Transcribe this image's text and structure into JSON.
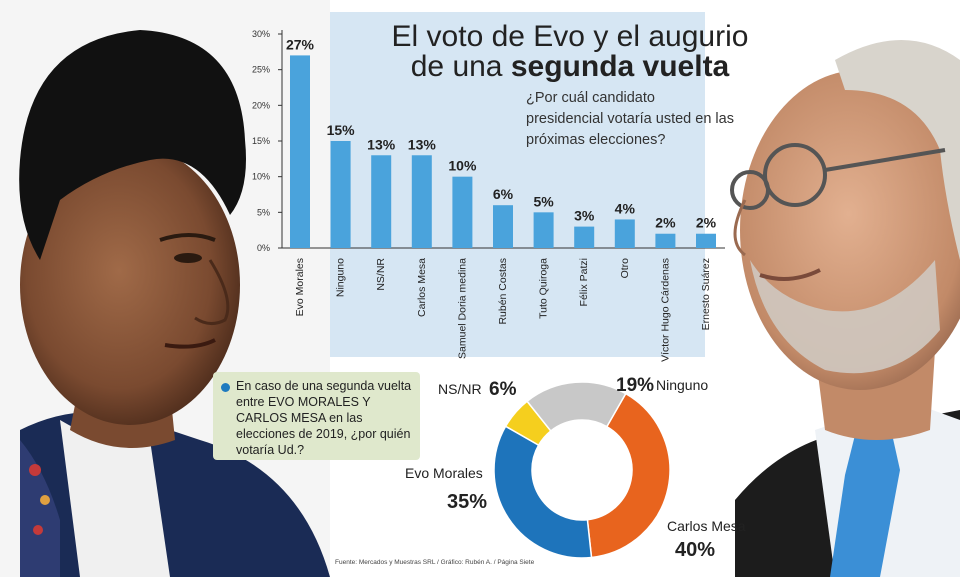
{
  "header": {
    "title_line1": "El voto de Evo y el augurio",
    "title_line2_regular": "de una",
    "title_line2_bold": "segunda vuelta"
  },
  "question": "¿Por cuál candidato presidencial votaría usted en las próximas elecciones?",
  "runoff_question": "En caso de una segunda vuelta entre EVO MORALES Y CARLOS MESA en las elecciones de 2019, ¿por quién votaría Ud.?",
  "source": "Fuente: Mercados y Muestras SRL / Gráfico: Rubén A. / Página Siete",
  "colors": {
    "bar": "#4aa3dc",
    "panel": "#d6e6f3",
    "evo": "#1e74bb",
    "mesa": "#e8641e",
    "ninguno": "#c8c8c8",
    "nsnr": "#f5cf1e"
  },
  "chart_data": [
    {
      "type": "bar",
      "categories": [
        "Evo Morales",
        "Ninguno",
        "NS/NR",
        "Carlos Mesa",
        "Samuel Doria medina",
        "Rubén Costas",
        "Tuto Quiroga",
        "Félix Patzi",
        "Otro",
        "Víctor Hugo Cárdenas",
        "Ernesto Suárez"
      ],
      "values": [
        27,
        15,
        13,
        13,
        10,
        6,
        5,
        3,
        4,
        2,
        2
      ],
      "value_labels": [
        "27%",
        "15%",
        "13%",
        "13%",
        "10%",
        "6%",
        "5%",
        "3%",
        "4%",
        "2%",
        "2%"
      ],
      "yticks": [
        "0%",
        "5%",
        "10%",
        "15%",
        "20%",
        "25%",
        "30%"
      ],
      "ylim": [
        0,
        30
      ],
      "title": "",
      "xlabel": "",
      "ylabel": ""
    },
    {
      "type": "pie",
      "donut": true,
      "slices": [
        {
          "name": "Carlos Mesa",
          "value": 40,
          "label": "40%"
        },
        {
          "name": "Evo Morales",
          "value": 35,
          "label": "35%"
        },
        {
          "name": "NS/NR",
          "value": 6,
          "label": "6%"
        },
        {
          "name": "Ninguno",
          "value": 19,
          "label": "19%"
        }
      ]
    }
  ]
}
